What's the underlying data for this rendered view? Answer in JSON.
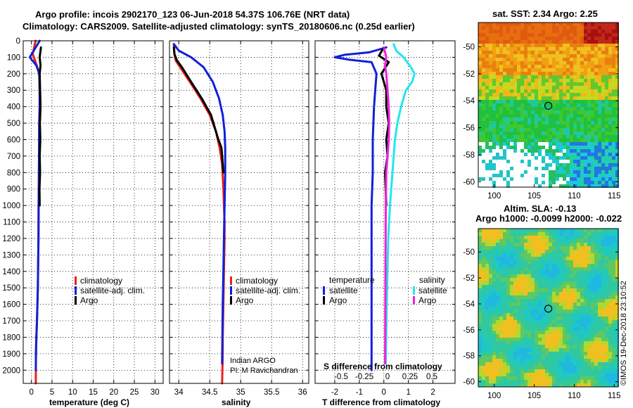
{
  "header": {
    "title_line1": "Argo profile: incois 2902170_123 06-Jun-2018 54.37S 106.76E (NRT data)",
    "title_line2": "Climatology: CARS2009. Satellite-adjusted climatology: synTS_20180606.nc (0.25d earlier)"
  },
  "colors": {
    "climatology": "#e8221c",
    "satellite": "#1020d8",
    "argo": "#000000",
    "satellite_salinity": "#22e6ee",
    "argo_salinity": "#ee22dd"
  },
  "depth_axis": {
    "ticks": [
      0,
      100,
      200,
      300,
      400,
      500,
      600,
      700,
      800,
      900,
      1000,
      1100,
      1200,
      1300,
      1400,
      1500,
      1600,
      1700,
      1800,
      1900,
      2000
    ],
    "range": [
      0,
      2080
    ]
  },
  "chart_data": [
    {
      "type": "line",
      "name": "temperature-profile",
      "xlabel": "temperature (deg C)",
      "ylabel": "depth",
      "xlim": [
        -2,
        32
      ],
      "ylim": [
        2080,
        0
      ],
      "xticks": [
        0,
        5,
        10,
        15,
        20,
        25,
        30
      ],
      "grid": true,
      "legend_position": "lower-right",
      "series": [
        {
          "name": "climatology",
          "color": "#e8221c",
          "x": [
            1.0,
            0.3,
            1.3,
            1.9,
            2.0,
            2.0,
            1.9,
            1.85,
            1.8,
            1.75,
            1.7,
            1.65,
            1.6,
            1.55,
            1.45,
            1.35,
            1.2,
            1.1,
            1.05
          ],
          "y": [
            0,
            80,
            150,
            200,
            300,
            400,
            500,
            700,
            900,
            1000,
            1200,
            1300,
            1400,
            1500,
            1600,
            1700,
            1800,
            1900,
            2080
          ]
        },
        {
          "name": "satellite-adj. clim.",
          "color": "#1020d8",
          "x": [
            2.0,
            -0.4,
            1.2,
            1.9,
            2.0,
            2.0,
            1.9,
            1.85,
            1.8,
            1.75,
            1.7,
            1.65,
            1.6,
            1.55,
            1.45,
            1.35,
            1.2,
            1.1,
            1.05
          ],
          "y": [
            0,
            100,
            150,
            200,
            300,
            400,
            500,
            700,
            900,
            1000,
            1200,
            1300,
            1400,
            1500,
            1600,
            1700,
            1800,
            1900,
            2000
          ]
        },
        {
          "name": "Argo",
          "color": "#000000",
          "x": [
            2.3,
            2.0,
            2.2,
            2.0,
            2.1,
            2.2,
            2.05,
            2.15,
            2.0,
            2.1,
            1.95,
            2.0
          ],
          "y": [
            40,
            100,
            150,
            200,
            300,
            400,
            500,
            600,
            700,
            800,
            900,
            1000
          ]
        }
      ]
    },
    {
      "type": "line",
      "name": "salinity-profile",
      "xlabel": "salinity",
      "ylabel": "depth",
      "xlim": [
        33.85,
        36.1
      ],
      "ylim": [
        2080,
        0
      ],
      "xticks": [
        34,
        34.5,
        35,
        35.5,
        36
      ],
      "grid": true,
      "legend_position": "lower-right",
      "series": [
        {
          "name": "climatology",
          "color": "#e8221c",
          "x": [
            33.92,
            33.93,
            33.95,
            34.02,
            34.18,
            34.35,
            34.5,
            34.6,
            34.66,
            34.7,
            34.72,
            34.73,
            34.74,
            34.74,
            34.73,
            34.72,
            34.71,
            34.71,
            34.7
          ],
          "y": [
            20,
            80,
            120,
            160,
            250,
            350,
            450,
            550,
            650,
            750,
            900,
            1000,
            1100,
            1200,
            1400,
            1600,
            1800,
            1900,
            2080
          ]
        },
        {
          "name": "satellite-adj. clim.",
          "color": "#1020d8",
          "x": [
            33.92,
            34.0,
            34.2,
            34.4,
            34.55,
            34.65,
            34.71,
            34.74,
            34.75,
            34.75,
            34.74,
            34.73,
            34.72,
            34.71,
            34.7
          ],
          "y": [
            20,
            60,
            100,
            160,
            250,
            350,
            450,
            550,
            650,
            800,
            1000,
            1200,
            1400,
            1600,
            1960
          ]
        },
        {
          "name": "Argo",
          "color": "#000000",
          "x": [
            33.92,
            33.93,
            33.97,
            34.05,
            34.2,
            34.37,
            34.52,
            34.6,
            34.64,
            34.69,
            34.7,
            34.72
          ],
          "y": [
            40,
            80,
            120,
            160,
            250,
            350,
            450,
            550,
            600,
            650,
            700,
            800
          ]
        }
      ]
    },
    {
      "type": "line",
      "name": "difference-profile",
      "xlabel": "T difference from climatology",
      "xlabel_top": "S difference from climatology",
      "ylabel": "depth",
      "xlim": [
        -2.8,
        2.9
      ],
      "ylim": [
        2080,
        0
      ],
      "xticks": [
        -2,
        -1,
        0,
        1,
        2
      ],
      "top_ticks": [
        -0.5,
        -0.25,
        0,
        0.25,
        0.5
      ],
      "grid": true,
      "legend_position": "lower",
      "series": [
        {
          "name": "temperature satellite",
          "color": "#1020d8",
          "x": [
            0.1,
            -0.6,
            -1.6,
            -2.0,
            -1.4,
            -0.5,
            -0.3,
            -0.35,
            -0.4,
            -0.45,
            -0.45,
            -0.5,
            -0.5,
            -0.5,
            -0.5
          ],
          "y": [
            40,
            70,
            85,
            100,
            115,
            130,
            200,
            300,
            400,
            600,
            800,
            1000,
            1400,
            1800,
            2000
          ]
        },
        {
          "name": "temperature Argo",
          "color": "#000000",
          "x": [
            0.0,
            -0.2,
            0.2,
            -0.1,
            0.1,
            0.1,
            0.2,
            0.1,
            0.15,
            0.05,
            0.1
          ],
          "y": [
            40,
            90,
            130,
            200,
            300,
            400,
            500,
            600,
            700,
            800,
            1000
          ]
        },
        {
          "name": "salinity satellite",
          "color": "#22e6ee",
          "x": [
            0.4,
            0.5,
            0.8,
            1.1,
            1.25,
            1.15,
            0.9,
            0.7,
            0.55,
            0.45,
            0.35,
            0.25,
            0.18,
            0.12,
            0.08
          ],
          "y": [
            20,
            60,
            100,
            160,
            200,
            250,
            300,
            400,
            500,
            600,
            800,
            1000,
            1200,
            1600,
            1960
          ]
        },
        {
          "name": "salinity Argo",
          "color": "#ee22dd",
          "x": [
            0.0,
            0.1,
            0.05,
            0.1,
            0.15,
            0.2,
            0.22,
            0.2,
            0.15,
            0.1,
            0.08,
            0.05
          ],
          "y": [
            40,
            100,
            150,
            200,
            300,
            400,
            500,
            600,
            700,
            800,
            1000,
            1960
          ]
        }
      ]
    },
    {
      "type": "heatmap",
      "name": "sst-map",
      "title": "sat. SST: 2.34 Argo: 2.25",
      "xticks": [
        100,
        105,
        110,
        115
      ],
      "yticks": [
        -50,
        -52,
        -54,
        -56,
        -58,
        -60
      ],
      "xlim": [
        98,
        115.5
      ],
      "ylim": [
        -60.4,
        -48.2
      ],
      "marker": [
        106.76,
        -54.37
      ]
    },
    {
      "type": "heatmap",
      "name": "sla-map",
      "title_line1": "Altim. SLA: -0.13",
      "title_line2": "Argo h1000: -0.0099 h2000: -0.022",
      "xticks": [
        100,
        105,
        110,
        115
      ],
      "yticks": [
        -50,
        -52,
        -54,
        -56,
        -58,
        -60
      ],
      "xlim": [
        98,
        115.5
      ],
      "ylim": [
        -60.4,
        -48.2
      ],
      "marker": [
        106.76,
        -54.37
      ]
    }
  ],
  "legends": {
    "profile": [
      "climatology",
      "satellite-adj. clim.",
      "Argo"
    ],
    "diff_temperature_header": "temperature",
    "diff_salinity_header": "salinity",
    "diff_temperature": [
      "satellite",
      "Argo"
    ],
    "diff_salinity": [
      "satellite",
      "Argo"
    ]
  },
  "credits": {
    "line1": "Indian ARGO",
    "line2": "PI: M Ravichandran"
  },
  "watermark": "©IMOS 19-Dec-2018 23:10:52"
}
